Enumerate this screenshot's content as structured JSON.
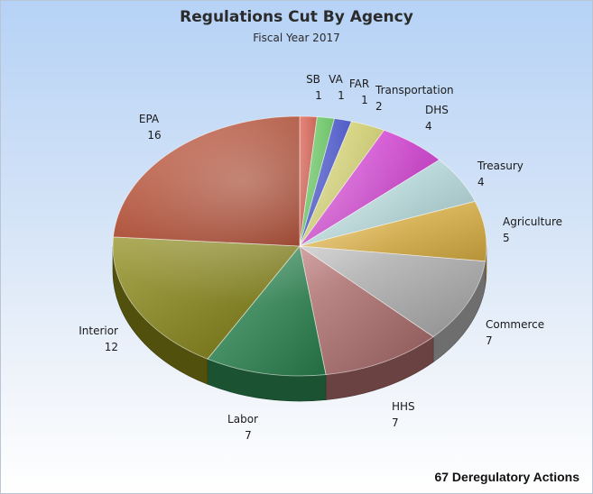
{
  "title": "Regulations Cut By Agency",
  "subtitle": "Fiscal Year 2017",
  "footer": "67 Deregulatory Actions",
  "chart_data": {
    "type": "pie",
    "title": "Regulations Cut By Agency",
    "subtitle": "Fiscal Year 2017",
    "categories": [
      "SB",
      "VA",
      "FAR",
      "Transportation",
      "DHS",
      "Treasury",
      "Agriculture",
      "Commerce",
      "HHS",
      "Labor",
      "Interior",
      "EPA"
    ],
    "values": [
      1,
      1,
      1,
      2,
      4,
      4,
      5,
      7,
      7,
      7,
      12,
      16
    ],
    "colors": [
      "#d9412f",
      "#55cf4e",
      "#2f3fd6",
      "#e2e06a",
      "#e23ee2",
      "#c8f0f2",
      "#f2c24a",
      "#bdbdbd",
      "#b87272",
      "#2e8f57",
      "#8c8a14",
      "#b83818"
    ],
    "total_label": "67 Deregulatory Actions",
    "legend": "none"
  }
}
